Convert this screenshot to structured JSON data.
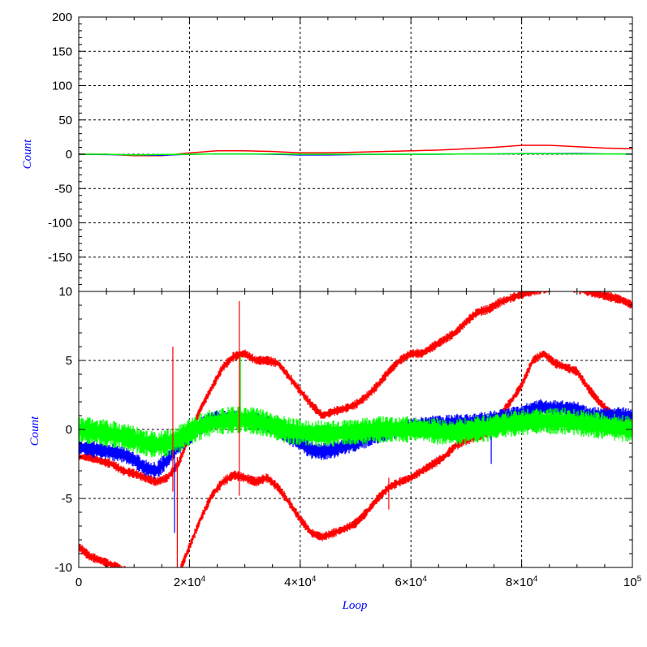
{
  "chart_data": [
    {
      "type": "line",
      "panel": "top",
      "title": "",
      "xlabel": "",
      "ylabel": "Count",
      "xlim": [
        0,
        100000
      ],
      "ylim": [
        -200,
        200
      ],
      "grid": true,
      "yticks": [
        -150,
        -100,
        -50,
        0,
        50,
        100,
        150,
        200
      ],
      "ytick_labels": [
        "-150",
        "-100",
        "-50",
        "0",
        "50",
        "100",
        "150",
        "200"
      ],
      "series": [
        {
          "color": "#ff0000",
          "x": [
            0,
            5000,
            10000,
            15000,
            20000,
            25000,
            30000,
            35000,
            40000,
            45000,
            50000,
            55000,
            60000,
            65000,
            70000,
            75000,
            80000,
            85000,
            90000,
            95000,
            100000
          ],
          "y": [
            0,
            0,
            -2,
            -2,
            2,
            5,
            5,
            4,
            2,
            2,
            3,
            4,
            5,
            6,
            8,
            10,
            13,
            13,
            11,
            9,
            8
          ]
        },
        {
          "color": "#0000ff",
          "x": [
            0,
            5000,
            10000,
            15000,
            20000,
            25000,
            30000,
            35000,
            40000,
            45000,
            50000,
            55000,
            60000,
            65000,
            70000,
            75000,
            80000,
            85000,
            90000,
            95000,
            100000
          ],
          "y": [
            0,
            -0.5,
            -1,
            -1.5,
            0,
            0.5,
            0.5,
            0,
            -1,
            -1,
            -0.5,
            0,
            0,
            0,
            0.5,
            0.5,
            1,
            1,
            1,
            0.5,
            0.5
          ]
        },
        {
          "color": "#00ff00",
          "x": [
            0,
            5000,
            10000,
            15000,
            20000,
            25000,
            30000,
            35000,
            40000,
            45000,
            50000,
            55000,
            60000,
            65000,
            70000,
            75000,
            80000,
            85000,
            90000,
            95000,
            100000
          ],
          "y": [
            0,
            0,
            -1,
            -0.5,
            0,
            0.5,
            0.5,
            0.5,
            0,
            0,
            0,
            0,
            0,
            0.2,
            0.3,
            0.5,
            0.8,
            0.8,
            0.5,
            0.3,
            0.2
          ]
        }
      ]
    },
    {
      "type": "line",
      "panel": "bottom",
      "title": "",
      "xlabel": "Loop",
      "ylabel": "Count",
      "xlim": [
        0,
        100000
      ],
      "ylim": [
        -10,
        10
      ],
      "grid": true,
      "yticks": [
        -10,
        -5,
        0,
        5,
        10
      ],
      "ytick_labels": [
        "-10",
        "-5",
        "0",
        "5",
        "10"
      ],
      "xticks": [
        0,
        20000,
        40000,
        60000,
        80000,
        100000
      ],
      "xtick_labels": [
        {
          "base": "0",
          "exp": ""
        },
        {
          "base": "2×10",
          "exp": "4"
        },
        {
          "base": "4×10",
          "exp": "4"
        },
        {
          "base": "6×10",
          "exp": "4"
        },
        {
          "base": "8×10",
          "exp": "4"
        },
        {
          "base": "10",
          "exp": "5"
        }
      ],
      "series": [
        {
          "color": "#ff0000",
          "band_width": 0.5,
          "x": [
            0,
            2000,
            4000,
            6000,
            8000,
            10000,
            12000,
            14000,
            16000,
            18000,
            20000,
            22000,
            24000,
            26000,
            28000,
            30000,
            32000,
            34000,
            36000,
            38000,
            40000,
            42000,
            44000,
            46000,
            48000,
            50000,
            52000,
            54000,
            56000,
            58000,
            60000,
            62000,
            64000,
            66000,
            68000,
            70000,
            72000,
            74000,
            76000,
            78000,
            80000,
            82000,
            84000,
            86000,
            88000,
            90000,
            92000,
            94000,
            96000,
            98000,
            100000
          ],
          "y": [
            -2.0,
            -2.0,
            -2.3,
            -2.5,
            -3.0,
            -3.2,
            -3.5,
            -3.8,
            -3.5,
            -2.5,
            -0.5,
            1.5,
            3.0,
            4.5,
            5.3,
            5.5,
            5.0,
            5.0,
            4.8,
            3.8,
            2.8,
            1.8,
            1.0,
            1.3,
            1.5,
            1.8,
            2.4,
            3.2,
            4.2,
            5.0,
            5.5,
            5.5,
            6.0,
            6.5,
            7.0,
            7.8,
            8.5,
            8.7,
            9.2,
            9.5,
            9.8,
            10.0,
            10.2,
            10.3,
            10.4,
            10.2,
            10.0,
            9.8,
            9.6,
            9.4,
            9.0
          ]
        },
        {
          "color": "#ff0000",
          "band_width": 0.5,
          "x": [
            0,
            2000,
            4000,
            6000,
            8000,
            10000,
            12000,
            14000,
            16000,
            18000,
            20000,
            22000,
            24000,
            26000,
            28000,
            30000,
            32000,
            34000,
            36000,
            38000,
            40000,
            42000,
            44000,
            46000,
            48000,
            50000,
            52000,
            54000,
            56000,
            58000,
            60000,
            62000,
            64000,
            66000,
            68000,
            70000,
            72000,
            74000,
            76000,
            78000,
            80000,
            82000,
            84000,
            86000,
            88000,
            90000,
            92000,
            94000,
            96000,
            98000,
            100000
          ],
          "y": [
            -8.5,
            -9.2,
            -9.5,
            -9.8,
            -10.2,
            -10.5,
            -11.0,
            -11.5,
            -11.5,
            -10.5,
            -8.5,
            -6.5,
            -4.8,
            -3.8,
            -3.3,
            -3.5,
            -3.8,
            -3.5,
            -4.2,
            -5.3,
            -6.5,
            -7.5,
            -7.8,
            -7.5,
            -7.2,
            -6.8,
            -6.0,
            -5.0,
            -4.2,
            -3.8,
            -3.5,
            -3.0,
            -2.5,
            -2.0,
            -1.2,
            -0.8,
            -0.5,
            -0.2,
            1.0,
            2.0,
            3.2,
            5.0,
            5.5,
            4.8,
            4.5,
            4.2,
            3.0,
            2.0,
            1.2,
            0.8,
            0.6
          ]
        },
        {
          "color": "#0000ff",
          "band_width": 0.9,
          "x": [
            0,
            4000,
            8000,
            10000,
            12000,
            14000,
            16000,
            18000,
            20000,
            22000,
            24000,
            26000,
            28000,
            30000,
            32000,
            34000,
            36000,
            38000,
            40000,
            42000,
            44000,
            46000,
            48000,
            50000,
            52000,
            54000,
            56000,
            58000,
            60000,
            62000,
            64000,
            66000,
            68000,
            70000,
            72000,
            74000,
            76000,
            78000,
            80000,
            82000,
            84000,
            86000,
            88000,
            90000,
            92000,
            94000,
            96000,
            98000,
            100000
          ],
          "y": [
            -1.3,
            -1.5,
            -1.8,
            -2.2,
            -2.8,
            -3.0,
            -2.2,
            -1.2,
            -0.5,
            0.2,
            0.7,
            0.8,
            0.8,
            0.7,
            0.6,
            0.4,
            0.0,
            -0.5,
            -1.0,
            -1.5,
            -1.6,
            -1.5,
            -1.2,
            -1.0,
            -0.7,
            -0.4,
            -0.2,
            0.0,
            0.2,
            0.3,
            0.4,
            0.4,
            0.5,
            0.5,
            0.6,
            0.7,
            0.9,
            1.0,
            1.1,
            1.5,
            1.6,
            1.5,
            1.5,
            1.4,
            1.0,
            1.0,
            1.0,
            1.0,
            1.0
          ]
        },
        {
          "color": "#00ff00",
          "band_width": 1.4,
          "x": [
            0,
            4000,
            8000,
            10000,
            12000,
            14000,
            16000,
            18000,
            20000,
            22000,
            24000,
            26000,
            28000,
            30000,
            32000,
            34000,
            36000,
            38000,
            40000,
            42000,
            44000,
            46000,
            48000,
            50000,
            52000,
            54000,
            56000,
            58000,
            60000,
            62000,
            64000,
            66000,
            68000,
            70000,
            72000,
            74000,
            76000,
            78000,
            80000,
            82000,
            84000,
            86000,
            88000,
            90000,
            92000,
            94000,
            96000,
            98000,
            100000
          ],
          "y": [
            0.0,
            -0.2,
            -0.5,
            -0.7,
            -1.0,
            -1.1,
            -1.0,
            -0.7,
            -0.2,
            0.2,
            0.5,
            0.6,
            0.7,
            0.7,
            0.6,
            0.4,
            0.1,
            -0.1,
            -0.2,
            -0.3,
            -0.3,
            -0.3,
            -0.2,
            -0.2,
            -0.1,
            0.0,
            0.0,
            0.0,
            0.0,
            0.0,
            -0.1,
            -0.2,
            -0.2,
            -0.1,
            0.0,
            0.1,
            0.3,
            0.4,
            0.5,
            0.6,
            0.6,
            0.6,
            0.6,
            0.5,
            0.4,
            0.3,
            0.2,
            0.1,
            0.0
          ]
        }
      ],
      "spikes": [
        {
          "color": "#ff0000",
          "x": 17000,
          "y0": -4.5,
          "y1": 6.0
        },
        {
          "color": "#0000ff",
          "x": 17300,
          "y0": -7.5,
          "y1": -1.5
        },
        {
          "color": "#ff0000",
          "x": 17800,
          "y0": -10.0,
          "y1": -2.0
        },
        {
          "color": "#ff0000",
          "x": 29000,
          "y0": -4.8,
          "y1": 9.3
        },
        {
          "color": "#00ff00",
          "x": 29200,
          "y0": 0.0,
          "y1": 5.3
        },
        {
          "color": "#ff0000",
          "x": 56000,
          "y0": -5.8,
          "y1": -3.5
        },
        {
          "color": "#0000ff",
          "x": 74500,
          "y0": -2.5,
          "y1": -0.5
        }
      ]
    }
  ]
}
